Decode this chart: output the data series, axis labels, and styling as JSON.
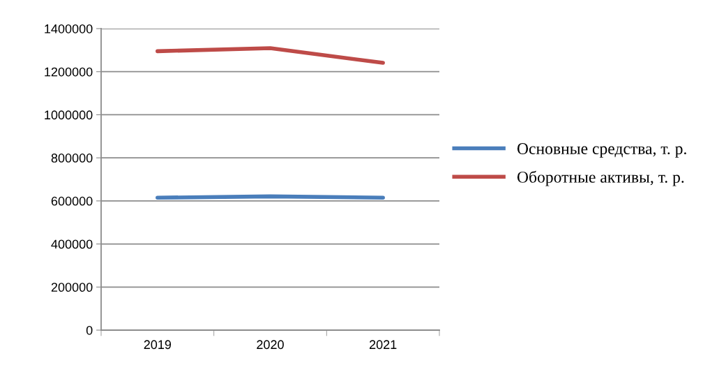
{
  "chart_data": {
    "type": "line",
    "categories": [
      "2019",
      "2020",
      "2021"
    ],
    "series": [
      {
        "name": "Основные средства, т. р.",
        "color": "#4a7ebb",
        "values": [
          615000,
          621000,
          615000
        ]
      },
      {
        "name": "Оборотные активы, т. р.",
        "color": "#be4b48",
        "values": [
          1295000,
          1309000,
          1241000
        ]
      }
    ],
    "ylim": [
      0,
      1400000
    ],
    "yticks": [
      0,
      200000,
      400000,
      600000,
      800000,
      1000000,
      1200000,
      1400000
    ],
    "grid": "y",
    "legend": "right",
    "marker": "none",
    "line_style": "solid"
  }
}
